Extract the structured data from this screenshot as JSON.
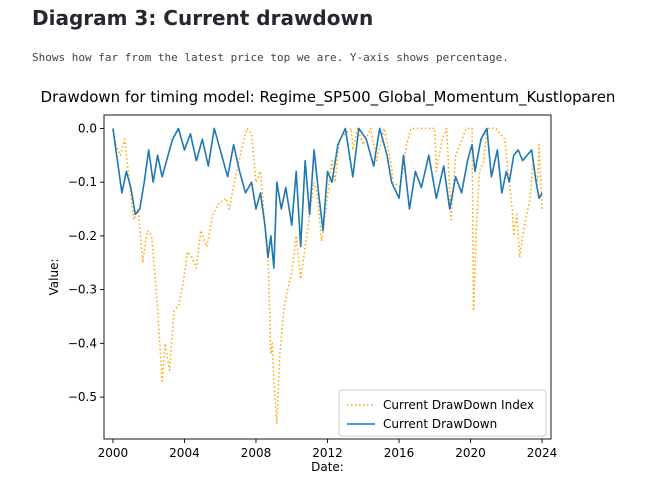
{
  "page": {
    "heading": "Diagram 3: Current drawdown",
    "description": "Shows how far from the latest price top we are. Y-axis shows percentage."
  },
  "chart_data": {
    "type": "line",
    "title": "Drawdown for timing model: Regime_SP500_Global_Momentum_Kustloparen",
    "xlabel": "Date:",
    "ylabel": "Value:",
    "x_ticks": [
      "2000",
      "2004",
      "2008",
      "2012",
      "2016",
      "2020",
      "2024"
    ],
    "y_ticks": [
      "0.0",
      "−0.1",
      "−0.2",
      "−0.3",
      "−0.4",
      "−0.5"
    ],
    "xlim": [
      "1999-07-01",
      "2024-07-01"
    ],
    "ylim": [
      -0.578,
      0.025
    ],
    "grid": false,
    "legend_position": "lower-right",
    "colors": {
      "index": "#ffa500",
      "model": "#1f77b4"
    },
    "series": [
      {
        "name": "Current DrawDown Index",
        "style": "dotted",
        "points": [
          [
            "2000-01-01",
            0.0
          ],
          [
            "2000-03-01",
            -0.03
          ],
          [
            "2000-06-01",
            -0.05
          ],
          [
            "2000-09-01",
            -0.02
          ],
          [
            "2000-12-01",
            -0.1
          ],
          [
            "2001-03-01",
            -0.17
          ],
          [
            "2001-06-01",
            -0.15
          ],
          [
            "2001-09-01",
            -0.25
          ],
          [
            "2001-12-01",
            -0.19
          ],
          [
            "2002-03-01",
            -0.2
          ],
          [
            "2002-06-01",
            -0.3
          ],
          [
            "2002-08-01",
            -0.38
          ],
          [
            "2002-10-01",
            -0.47
          ],
          [
            "2002-12-01",
            -0.4
          ],
          [
            "2003-03-01",
            -0.45
          ],
          [
            "2003-06-01",
            -0.34
          ],
          [
            "2003-09-01",
            -0.33
          ],
          [
            "2003-12-01",
            -0.29
          ],
          [
            "2004-03-01",
            -0.23
          ],
          [
            "2004-06-01",
            -0.24
          ],
          [
            "2004-09-01",
            -0.26
          ],
          [
            "2004-12-01",
            -0.19
          ],
          [
            "2005-04-01",
            -0.22
          ],
          [
            "2005-08-01",
            -0.16
          ],
          [
            "2005-12-01",
            -0.14
          ],
          [
            "2006-05-01",
            -0.13
          ],
          [
            "2006-07-01",
            -0.15
          ],
          [
            "2006-12-01",
            -0.08
          ],
          [
            "2007-05-01",
            -0.02
          ],
          [
            "2007-07-01",
            0.0
          ],
          [
            "2007-10-01",
            -0.01
          ],
          [
            "2008-01-01",
            -0.1
          ],
          [
            "2008-04-01",
            -0.08
          ],
          [
            "2008-07-01",
            -0.18
          ],
          [
            "2008-09-01",
            -0.23
          ],
          [
            "2008-11-01",
            -0.42
          ],
          [
            "2008-12-01",
            -0.4
          ],
          [
            "2009-01-01",
            -0.47
          ],
          [
            "2009-03-01",
            -0.55
          ],
          [
            "2009-05-01",
            -0.42
          ],
          [
            "2009-08-01",
            -0.33
          ],
          [
            "2009-11-01",
            -0.29
          ],
          [
            "2010-01-01",
            -0.27
          ],
          [
            "2010-04-01",
            -0.2
          ],
          [
            "2010-07-01",
            -0.28
          ],
          [
            "2010-10-01",
            -0.22
          ],
          [
            "2011-01-01",
            -0.16
          ],
          [
            "2011-04-01",
            -0.1
          ],
          [
            "2011-06-01",
            -0.12
          ],
          [
            "2011-09-01",
            -0.21
          ],
          [
            "2011-12-01",
            -0.15
          ],
          [
            "2012-04-01",
            -0.06
          ],
          [
            "2012-06-01",
            -0.1
          ],
          [
            "2012-09-01",
            -0.02
          ],
          [
            "2013-01-01",
            -0.01
          ],
          [
            "2013-05-01",
            0.0
          ],
          [
            "2013-06-01",
            -0.04
          ],
          [
            "2013-09-01",
            0.0
          ],
          [
            "2014-01-01",
            -0.03
          ],
          [
            "2014-06-01",
            0.0
          ],
          [
            "2014-10-01",
            -0.06
          ],
          [
            "2015-03-01",
            0.0
          ],
          [
            "2015-08-01",
            -0.07
          ],
          [
            "2015-09-01",
            -0.1
          ],
          [
            "2016-02-01",
            -0.11
          ],
          [
            "2016-06-01",
            -0.03
          ],
          [
            "2016-09-01",
            0.0
          ],
          [
            "2017-06-01",
            0.0
          ],
          [
            "2018-01-01",
            0.0
          ],
          [
            "2018-02-01",
            -0.08
          ],
          [
            "2018-06-01",
            -0.02
          ],
          [
            "2018-09-01",
            0.0
          ],
          [
            "2018-12-01",
            -0.17
          ],
          [
            "2019-03-01",
            -0.05
          ],
          [
            "2019-06-01",
            -0.03
          ],
          [
            "2019-10-01",
            0.0
          ],
          [
            "2020-02-01",
            0.0
          ],
          [
            "2020-03-01",
            -0.34
          ],
          [
            "2020-05-01",
            -0.18
          ],
          [
            "2020-07-01",
            -0.08
          ],
          [
            "2020-10-01",
            -0.06
          ],
          [
            "2020-12-01",
            0.0
          ],
          [
            "2021-06-01",
            0.0
          ],
          [
            "2021-12-01",
            -0.02
          ],
          [
            "2022-01-01",
            -0.05
          ],
          [
            "2022-03-01",
            -0.1
          ],
          [
            "2022-05-01",
            -0.15
          ],
          [
            "2022-06-01",
            -0.2
          ],
          [
            "2022-08-01",
            -0.16
          ],
          [
            "2022-10-01",
            -0.24
          ],
          [
            "2022-12-01",
            -0.2
          ],
          [
            "2023-02-01",
            -0.17
          ],
          [
            "2023-05-01",
            -0.13
          ],
          [
            "2023-07-01",
            -0.06
          ],
          [
            "2023-08-01",
            -0.08
          ],
          [
            "2023-10-01",
            -0.1
          ],
          [
            "2023-11-01",
            -0.03
          ],
          [
            "2024-01-01",
            -0.15
          ]
        ]
      },
      {
        "name": "Current DrawDown",
        "style": "solid",
        "points": [
          [
            "2000-01-01",
            0.0
          ],
          [
            "2000-04-01",
            -0.06
          ],
          [
            "2000-07-01",
            -0.12
          ],
          [
            "2000-10-01",
            -0.08
          ],
          [
            "2001-01-01",
            -0.11
          ],
          [
            "2001-04-01",
            -0.16
          ],
          [
            "2001-07-01",
            -0.15
          ],
          [
            "2001-10-01",
            -0.1
          ],
          [
            "2002-01-01",
            -0.04
          ],
          [
            "2002-04-01",
            -0.1
          ],
          [
            "2002-07-01",
            -0.05
          ],
          [
            "2002-10-01",
            -0.09
          ],
          [
            "2003-01-01",
            -0.06
          ],
          [
            "2003-05-01",
            -0.02
          ],
          [
            "2003-09-01",
            0.0
          ],
          [
            "2004-01-01",
            -0.04
          ],
          [
            "2004-05-01",
            -0.01
          ],
          [
            "2004-09-01",
            -0.06
          ],
          [
            "2005-01-01",
            -0.02
          ],
          [
            "2005-05-01",
            -0.07
          ],
          [
            "2005-09-01",
            0.0
          ],
          [
            "2006-02-01",
            -0.05
          ],
          [
            "2006-06-01",
            -0.09
          ],
          [
            "2006-10-01",
            -0.03
          ],
          [
            "2007-02-01",
            -0.08
          ],
          [
            "2007-06-01",
            -0.12
          ],
          [
            "2007-10-01",
            -0.1
          ],
          [
            "2008-01-01",
            -0.15
          ],
          [
            "2008-04-01",
            -0.12
          ],
          [
            "2008-07-01",
            -0.18
          ],
          [
            "2008-09-01",
            -0.24
          ],
          [
            "2008-11-01",
            -0.2
          ],
          [
            "2009-01-01",
            -0.26
          ],
          [
            "2009-03-01",
            -0.1
          ],
          [
            "2009-06-01",
            -0.15
          ],
          [
            "2009-09-01",
            -0.11
          ],
          [
            "2010-01-01",
            -0.18
          ],
          [
            "2010-04-01",
            -0.08
          ],
          [
            "2010-07-01",
            -0.22
          ],
          [
            "2010-10-01",
            -0.06
          ],
          [
            "2011-01-01",
            -0.16
          ],
          [
            "2011-04-01",
            -0.04
          ],
          [
            "2011-07-01",
            -0.12
          ],
          [
            "2011-10-01",
            -0.19
          ],
          [
            "2012-01-01",
            -0.08
          ],
          [
            "2012-04-01",
            -0.1
          ],
          [
            "2012-08-01",
            -0.03
          ],
          [
            "2013-01-01",
            0.0
          ],
          [
            "2013-06-01",
            -0.09
          ],
          [
            "2013-10-01",
            0.0
          ],
          [
            "2014-03-01",
            -0.02
          ],
          [
            "2014-08-01",
            -0.07
          ],
          [
            "2014-12-01",
            0.0
          ],
          [
            "2015-05-01",
            -0.05
          ],
          [
            "2015-08-01",
            -0.1
          ],
          [
            "2016-01-01",
            -0.13
          ],
          [
            "2016-04-01",
            -0.05
          ],
          [
            "2016-08-01",
            -0.15
          ],
          [
            "2016-12-01",
            -0.08
          ],
          [
            "2017-04-01",
            -0.11
          ],
          [
            "2017-09-01",
            -0.05
          ],
          [
            "2018-02-01",
            -0.13
          ],
          [
            "2018-07-01",
            -0.07
          ],
          [
            "2018-11-01",
            -0.15
          ],
          [
            "2019-03-01",
            -0.09
          ],
          [
            "2019-07-01",
            -0.12
          ],
          [
            "2019-11-01",
            -0.06
          ],
          [
            "2020-02-01",
            -0.03
          ],
          [
            "2020-04-01",
            -0.08
          ],
          [
            "2020-08-01",
            -0.02
          ],
          [
            "2020-12-01",
            0.0
          ],
          [
            "2021-03-01",
            -0.09
          ],
          [
            "2021-07-01",
            -0.04
          ],
          [
            "2021-10-01",
            -0.12
          ],
          [
            "2022-01-01",
            -0.08
          ],
          [
            "2022-03-01",
            -0.1
          ],
          [
            "2022-06-01",
            -0.05
          ],
          [
            "2022-09-01",
            -0.04
          ],
          [
            "2022-12-01",
            -0.06
          ],
          [
            "2023-03-01",
            -0.05
          ],
          [
            "2023-06-01",
            -0.04
          ],
          [
            "2023-09-01",
            -0.1
          ],
          [
            "2023-11-01",
            -0.13
          ],
          [
            "2024-01-01",
            -0.12
          ]
        ]
      }
    ]
  }
}
